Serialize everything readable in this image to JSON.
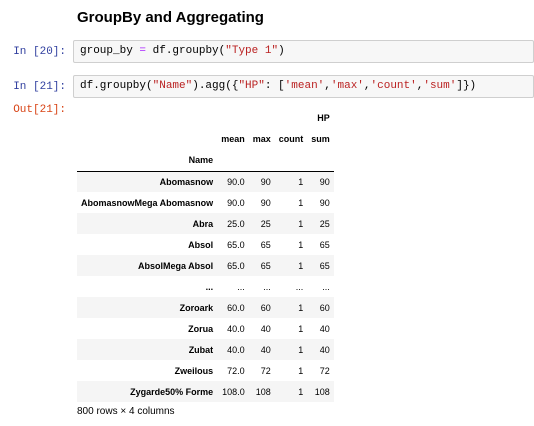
{
  "heading": "GroupBy and Aggregating",
  "cells": {
    "in20": {
      "prompt": "In [20]:",
      "code": {
        "p1": "group_by ",
        "p2": "=",
        "p3": " df.groupby(",
        "p4": "\"Type 1\"",
        "p5": ")"
      }
    },
    "in21": {
      "prompt": "In [21]:",
      "code": {
        "p1": "df.groupby(",
        "p2": "\"Name\"",
        "p3": ").agg({",
        "p4": "\"HP\"",
        "p5": ": [",
        "p6": "'mean'",
        "p7": ",",
        "p8": "'max'",
        "p9": ",",
        "p10": "'count'",
        "p11": ",",
        "p12": "'sum'",
        "p13": "]})"
      }
    },
    "out21": {
      "prompt": "Out[21]:"
    }
  },
  "table": {
    "top_header": "HP",
    "columns": [
      "mean",
      "max",
      "count",
      "sum"
    ],
    "index_name": "Name",
    "rows": [
      {
        "name": "Abomasnow",
        "mean": "90.0",
        "max": "90",
        "count": "1",
        "sum": "90"
      },
      {
        "name": "AbomasnowMega Abomasnow",
        "mean": "90.0",
        "max": "90",
        "count": "1",
        "sum": "90"
      },
      {
        "name": "Abra",
        "mean": "25.0",
        "max": "25",
        "count": "1",
        "sum": "25"
      },
      {
        "name": "Absol",
        "mean": "65.0",
        "max": "65",
        "count": "1",
        "sum": "65"
      },
      {
        "name": "AbsolMega Absol",
        "mean": "65.0",
        "max": "65",
        "count": "1",
        "sum": "65"
      },
      {
        "name": "...",
        "mean": "...",
        "max": "...",
        "count": "...",
        "sum": "..."
      },
      {
        "name": "Zoroark",
        "mean": "60.0",
        "max": "60",
        "count": "1",
        "sum": "60"
      },
      {
        "name": "Zorua",
        "mean": "40.0",
        "max": "40",
        "count": "1",
        "sum": "40"
      },
      {
        "name": "Zubat",
        "mean": "40.0",
        "max": "40",
        "count": "1",
        "sum": "40"
      },
      {
        "name": "Zweilous",
        "mean": "72.0",
        "max": "72",
        "count": "1",
        "sum": "72"
      },
      {
        "name": "Zygarde50% Forme",
        "mean": "108.0",
        "max": "108",
        "count": "1",
        "sum": "108"
      }
    ]
  },
  "footer": "800 rows × 4 columns"
}
